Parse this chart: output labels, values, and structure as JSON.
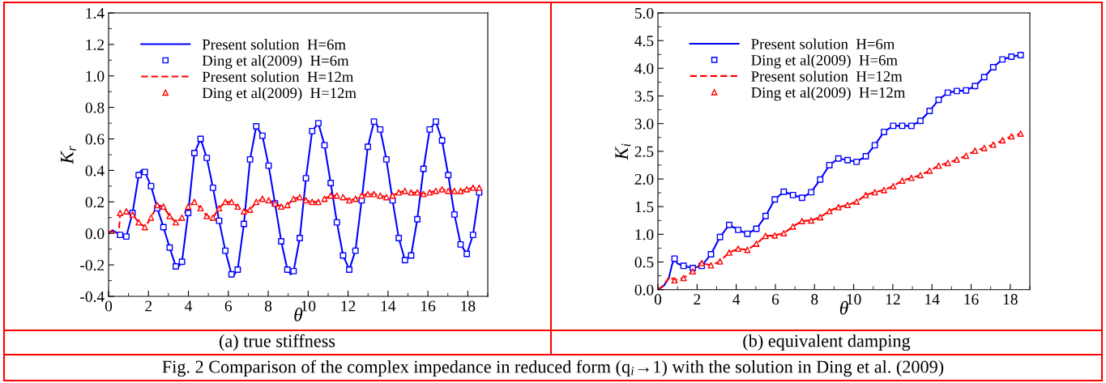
{
  "chart_data": [
    {
      "type": "line",
      "xlabel": "θ",
      "ylabel": "K$_{r}$",
      "xlim": [
        0,
        19
      ],
      "xticks": [
        0,
        2,
        4,
        6,
        8,
        10,
        12,
        14,
        16,
        18
      ],
      "ylim": [
        -0.4,
        1.4
      ],
      "yticks": [
        -0.4,
        -0.2,
        {
          "value": 0,
          "label": "0.0"
        },
        0.2,
        0.4,
        0.6,
        0.8,
        {
          "value": 1,
          "label": "1.0"
        },
        1.2,
        1.4
      ],
      "legend": "top left",
      "annotations": [
        "(a) true stiffness",
        "Fig. 2 Comparison of the complex impedance in reduced form (q$_{i}$→1) with the solution in Ding et al. (2009)"
      ],
      "series": [
        {
          "name": "Present solution  H=6m",
          "color": "#0000ff",
          "marker": "none",
          "line_style": "solid",
          "x": [
            0,
            0.2,
            0.45,
            0.58,
            0.89,
            1.2,
            1.51,
            1.64,
            1.82,
            2.13,
            2.44,
            2.75,
            3.06,
            3.37,
            3.46,
            3.68,
            3.99,
            4.3,
            4.61,
            4.92,
            5.23,
            5.54,
            5.85,
            6.16,
            6.26,
            6.47,
            6.78,
            7.09,
            7.4,
            7.71,
            8.02,
            8.34,
            8.65,
            8.96,
            9.12,
            9.27,
            9.58,
            9.89,
            10.2,
            10.51,
            10.82,
            11.13,
            11.44,
            11.75,
            12.06,
            12.37,
            12.68,
            12.99,
            13.3,
            13.61,
            13.92,
            14.23,
            14.54,
            14.85,
            15.16,
            15.47,
            15.78,
            16.09,
            16.4,
            16.71,
            17.02,
            17.33,
            17.64,
            17.95,
            18.26,
            18.57
          ],
          "values": [
            0,
            0.02,
            0.0,
            -0.01,
            -0.02,
            0.13,
            0.37,
            0.4,
            0.39,
            0.3,
            0.16,
            0.04,
            -0.09,
            -0.21,
            -0.22,
            -0.18,
            0.13,
            0.51,
            0.6,
            0.48,
            0.29,
            0.08,
            -0.11,
            -0.26,
            -0.27,
            -0.23,
            0.06,
            0.47,
            0.68,
            0.62,
            0.43,
            0.19,
            -0.05,
            -0.23,
            -0.26,
            -0.24,
            -0.03,
            0.35,
            0.65,
            0.7,
            0.56,
            0.32,
            0.07,
            -0.14,
            -0.23,
            -0.11,
            0.21,
            0.55,
            0.71,
            0.66,
            0.47,
            0.21,
            -0.03,
            -0.17,
            -0.14,
            0.09,
            0.41,
            0.66,
            0.71,
            0.59,
            0.37,
            0.12,
            -0.07,
            -0.13,
            -0.01,
            0.26
          ]
        },
        {
          "name": "Ding et al(2009)  H=6m",
          "color": "#0000ff",
          "type": "scatter",
          "marker": "square",
          "x": [
            0.58,
            0.89,
            1.2,
            1.51,
            1.82,
            2.13,
            2.44,
            2.75,
            3.06,
            3.37,
            3.68,
            3.99,
            4.3,
            4.61,
            4.92,
            5.23,
            5.54,
            5.85,
            6.16,
            6.47,
            6.78,
            7.09,
            7.4,
            7.71,
            8.02,
            8.34,
            8.65,
            8.96,
            9.27,
            9.58,
            9.89,
            10.2,
            10.51,
            10.82,
            11.13,
            11.44,
            11.75,
            12.06,
            12.37,
            12.68,
            12.99,
            13.3,
            13.61,
            13.92,
            14.23,
            14.54,
            14.85,
            15.16,
            15.47,
            15.78,
            16.09,
            16.4,
            16.71,
            17.02,
            17.33,
            17.64,
            17.95,
            18.26,
            18.57
          ],
          "values": [
            -0.01,
            -0.02,
            0.13,
            0.37,
            0.39,
            0.3,
            0.16,
            0.04,
            -0.09,
            -0.21,
            -0.18,
            0.13,
            0.51,
            0.6,
            0.48,
            0.29,
            0.08,
            -0.11,
            -0.26,
            -0.23,
            0.06,
            0.47,
            0.68,
            0.62,
            0.43,
            0.19,
            -0.05,
            -0.23,
            -0.24,
            -0.03,
            0.35,
            0.65,
            0.7,
            0.56,
            0.32,
            0.07,
            -0.14,
            -0.23,
            -0.11,
            0.21,
            0.55,
            0.71,
            0.66,
            0.47,
            0.21,
            -0.03,
            -0.17,
            -0.14,
            0.09,
            0.41,
            0.66,
            0.71,
            0.59,
            0.37,
            0.12,
            -0.07,
            -0.13,
            -0.01,
            0.26
          ]
        },
        {
          "name": "Present solution  H=12m",
          "color": "#ff0000",
          "marker": "none",
          "line_style": "dashed",
          "x": [
            0,
            0.25,
            0.5,
            0.58,
            0.89,
            1.2,
            1.51,
            1.82,
            2.13,
            2.44,
            2.75,
            3.06,
            3.37,
            3.68,
            3.99,
            4.3,
            4.61,
            4.92,
            5.23,
            5.54,
            5.85,
            6.16,
            6.47,
            6.78,
            7.09,
            7.4,
            7.71,
            8.02,
            8.34,
            8.65,
            8.96,
            9.27,
            9.58,
            9.89,
            10.2,
            10.51,
            10.82,
            11.13,
            11.44,
            11.75,
            12.06,
            12.37,
            12.68,
            12.99,
            13.3,
            13.61,
            13.92,
            14.23,
            14.54,
            14.85,
            15.16,
            15.47,
            15.78,
            16.09,
            16.4,
            16.71,
            17.02,
            17.33,
            17.64,
            17.95,
            18.26,
            18.57
          ],
          "values": [
            0.01,
            0.01,
            -0.02,
            0.13,
            0.14,
            0.12,
            0.07,
            0.04,
            0.1,
            0.18,
            0.17,
            0.11,
            0.07,
            0.1,
            0.17,
            0.2,
            0.16,
            0.11,
            0.1,
            0.16,
            0.2,
            0.2,
            0.17,
            0.14,
            0.15,
            0.2,
            0.22,
            0.21,
            0.19,
            0.17,
            0.18,
            0.22,
            0.23,
            0.21,
            0.2,
            0.2,
            0.22,
            0.24,
            0.24,
            0.23,
            0.21,
            0.22,
            0.24,
            0.25,
            0.25,
            0.24,
            0.23,
            0.24,
            0.26,
            0.27,
            0.26,
            0.26,
            0.25,
            0.26,
            0.27,
            0.28,
            0.27,
            0.27,
            0.27,
            0.28,
            0.29,
            0.29
          ]
        },
        {
          "name": "Ding et al(2009)  H=12m",
          "color": "#ff0000",
          "type": "scatter",
          "marker": "triangle",
          "x": [
            0.58,
            0.89,
            1.2,
            1.51,
            1.82,
            2.13,
            2.44,
            2.75,
            3.06,
            3.37,
            3.68,
            3.99,
            4.3,
            4.61,
            4.92,
            5.23,
            5.54,
            5.85,
            6.16,
            6.47,
            6.78,
            7.09,
            7.4,
            7.71,
            8.02,
            8.34,
            8.65,
            8.96,
            9.27,
            9.58,
            9.89,
            10.2,
            10.51,
            10.82,
            11.13,
            11.44,
            11.75,
            12.06,
            12.37,
            12.68,
            12.99,
            13.3,
            13.61,
            13.92,
            14.23,
            14.54,
            14.85,
            15.16,
            15.47,
            15.78,
            16.09,
            16.4,
            16.71,
            17.02,
            17.33,
            17.64,
            17.95,
            18.26,
            18.57
          ],
          "values": [
            0.13,
            0.14,
            0.12,
            0.07,
            0.04,
            0.1,
            0.18,
            0.17,
            0.11,
            0.07,
            0.1,
            0.17,
            0.2,
            0.16,
            0.11,
            0.1,
            0.16,
            0.2,
            0.2,
            0.17,
            0.14,
            0.15,
            0.2,
            0.22,
            0.21,
            0.19,
            0.17,
            0.18,
            0.22,
            0.23,
            0.21,
            0.2,
            0.2,
            0.22,
            0.24,
            0.24,
            0.23,
            0.21,
            0.22,
            0.24,
            0.25,
            0.25,
            0.24,
            0.23,
            0.24,
            0.26,
            0.27,
            0.26,
            0.26,
            0.25,
            0.26,
            0.27,
            0.28,
            0.27,
            0.27,
            0.27,
            0.28,
            0.29,
            0.29
          ]
        }
      ]
    },
    {
      "type": "line",
      "xlabel": "θ",
      "ylabel": "K$_{i}$",
      "xlim": [
        0,
        19
      ],
      "xticks": [
        0,
        2,
        4,
        6,
        8,
        10,
        12,
        14,
        16,
        18
      ],
      "ylim": [
        0.0,
        5.0
      ],
      "yticks": [
        {
          "value": 0,
          "label": "0.0"
        },
        0.5,
        {
          "value": 1,
          "label": "1.0"
        },
        1.5,
        {
          "value": 2,
          "label": "2.0"
        },
        2.5,
        {
          "value": 3,
          "label": "3.0"
        },
        3.5,
        {
          "value": 4,
          "label": "4.0"
        },
        4.5,
        {
          "value": 5,
          "label": "5.0"
        }
      ],
      "legend": "top left",
      "annotations": [
        "(b) equivalent damping"
      ],
      "series": [
        {
          "name": "Present solution  H=6m",
          "color": "#0000ff",
          "marker": "none",
          "line_style": "solid",
          "x": [
            0,
            0.3,
            0.55,
            0.72,
            0.85,
            1.0,
            1.31,
            1.78,
            2.24,
            2.71,
            3.17,
            3.64,
            4.1,
            4.57,
            5.03,
            5.5,
            5.97,
            6.43,
            6.9,
            7.36,
            7.83,
            8.29,
            8.76,
            9.22,
            9.69,
            10.15,
            10.62,
            11.08,
            11.55,
            12.02,
            12.48,
            12.95,
            13.41,
            13.88,
            14.34,
            14.81,
            15.27,
            15.74,
            16.2,
            16.67,
            17.13,
            17.6,
            18.06,
            18.53
          ],
          "values": [
            0,
            0.07,
            0.2,
            0.45,
            0.56,
            0.47,
            0.43,
            0.39,
            0.43,
            0.64,
            0.95,
            1.17,
            1.08,
            1.01,
            1.1,
            1.33,
            1.63,
            1.77,
            1.71,
            1.66,
            1.76,
            1.99,
            2.25,
            2.37,
            2.34,
            2.31,
            2.41,
            2.61,
            2.85,
            2.96,
            2.96,
            2.96,
            3.05,
            3.23,
            3.43,
            3.56,
            3.59,
            3.6,
            3.68,
            3.84,
            4.02,
            4.16,
            4.21,
            4.24
          ]
        },
        {
          "name": "Ding et al(2009)  H=6m",
          "color": "#0000ff",
          "type": "scatter",
          "marker": "square",
          "x": [
            0.85,
            1.31,
            1.78,
            2.24,
            2.71,
            3.17,
            3.64,
            4.1,
            4.57,
            5.03,
            5.5,
            5.97,
            6.43,
            6.9,
            7.36,
            7.83,
            8.29,
            8.76,
            9.22,
            9.69,
            10.15,
            10.62,
            11.08,
            11.55,
            12.02,
            12.48,
            12.95,
            13.41,
            13.88,
            14.34,
            14.81,
            15.27,
            15.74,
            16.2,
            16.67,
            17.13,
            17.6,
            18.06,
            18.53
          ],
          "values": [
            0.56,
            0.43,
            0.39,
            0.43,
            0.64,
            0.95,
            1.17,
            1.08,
            1.01,
            1.1,
            1.33,
            1.63,
            1.77,
            1.71,
            1.66,
            1.76,
            1.99,
            2.25,
            2.37,
            2.34,
            2.31,
            2.41,
            2.61,
            2.85,
            2.96,
            2.96,
            2.96,
            3.05,
            3.23,
            3.43,
            3.56,
            3.59,
            3.6,
            3.68,
            3.84,
            4.02,
            4.16,
            4.21,
            4.24
          ]
        },
        {
          "name": "Present solution  H=12m",
          "color": "#ff0000",
          "marker": "none",
          "line_style": "dashed",
          "x": [
            0,
            0.3,
            0.6,
            0.85,
            1.31,
            1.78,
            2.24,
            2.71,
            3.17,
            3.64,
            4.1,
            4.57,
            5.03,
            5.5,
            5.97,
            6.43,
            6.9,
            7.36,
            7.83,
            8.29,
            8.76,
            9.22,
            9.69,
            10.15,
            10.62,
            11.08,
            11.55,
            12.02,
            12.48,
            12.95,
            13.41,
            13.88,
            14.34,
            14.81,
            15.27,
            15.74,
            16.2,
            16.67,
            17.13,
            17.6,
            18.06,
            18.53
          ],
          "values": [
            0,
            0.08,
            0.24,
            0.17,
            0.21,
            0.33,
            0.48,
            0.44,
            0.51,
            0.67,
            0.74,
            0.72,
            0.83,
            0.97,
            0.98,
            1.02,
            1.14,
            1.24,
            1.25,
            1.31,
            1.42,
            1.49,
            1.53,
            1.59,
            1.71,
            1.76,
            1.8,
            1.87,
            1.97,
            2.02,
            2.07,
            2.15,
            2.24,
            2.29,
            2.35,
            2.42,
            2.51,
            2.56,
            2.62,
            2.7,
            2.77,
            2.82
          ]
        },
        {
          "name": "Ding et al(2009)  H=12m",
          "color": "#ff0000",
          "type": "scatter",
          "marker": "triangle",
          "x": [
            0.85,
            1.31,
            1.78,
            2.24,
            2.71,
            3.17,
            3.64,
            4.1,
            4.57,
            5.03,
            5.5,
            5.97,
            6.43,
            6.9,
            7.36,
            7.83,
            8.29,
            8.76,
            9.22,
            9.69,
            10.15,
            10.62,
            11.08,
            11.55,
            12.02,
            12.48,
            12.95,
            13.41,
            13.88,
            14.34,
            14.81,
            15.27,
            15.74,
            16.2,
            16.67,
            17.13,
            17.6,
            18.06,
            18.53
          ],
          "values": [
            0.17,
            0.21,
            0.33,
            0.48,
            0.44,
            0.51,
            0.67,
            0.74,
            0.72,
            0.83,
            0.97,
            0.98,
            1.02,
            1.14,
            1.24,
            1.25,
            1.31,
            1.42,
            1.49,
            1.53,
            1.59,
            1.71,
            1.76,
            1.8,
            1.87,
            1.97,
            2.02,
            2.07,
            2.15,
            2.24,
            2.29,
            2.35,
            2.42,
            2.51,
            2.56,
            2.62,
            2.7,
            2.77,
            2.82
          ]
        }
      ]
    }
  ]
}
